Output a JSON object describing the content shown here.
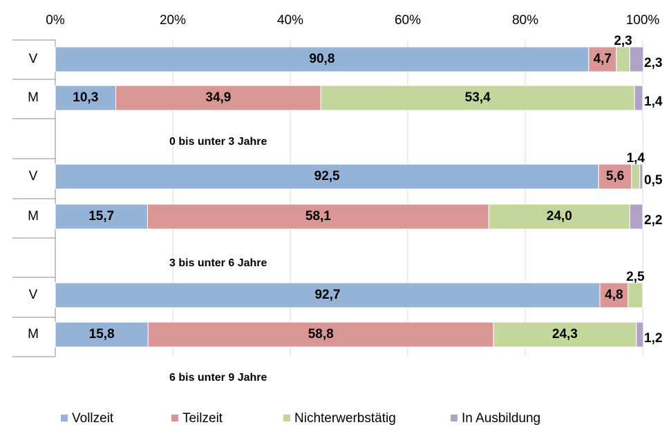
{
  "chart_data": {
    "type": "stacked-bar-horizontal",
    "categories": [
      "V",
      "M",
      "V",
      "M",
      "V",
      "M"
    ],
    "groups": [
      "0 bis unter 3 Jahre",
      "3 bis unter 6 Jahre",
      "6 bis unter 9 Jahre"
    ],
    "series": [
      {
        "name": "Vollzeit",
        "color": "#95b3d7",
        "values": [
          90.8,
          10.3,
          92.5,
          15.7,
          92.7,
          15.8
        ],
        "value_labels": [
          "90,8",
          "10,3",
          "92,5",
          "15,7",
          "92,7",
          "15,8"
        ]
      },
      {
        "name": "Teilzeit",
        "color": "#d99694",
        "values": [
          4.7,
          34.9,
          5.6,
          58.1,
          4.8,
          58.8
        ],
        "value_labels": [
          "4,7",
          "34,9",
          "5,6",
          "58,1",
          "4,8",
          "58,8"
        ]
      },
      {
        "name": "Nichterwerbstätig",
        "color": "#c3d69b",
        "values": [
          2.3,
          53.4,
          1.4,
          24.0,
          2.5,
          24.3
        ],
        "value_labels": [
          "2,3",
          "53,4",
          "1,4",
          "24,0",
          "2,5",
          "24,3"
        ]
      },
      {
        "name": "In Ausbildung",
        "color": "#b3a2c7",
        "values": [
          2.3,
          1.4,
          0.5,
          2.2,
          null,
          1.2
        ],
        "value_labels": [
          "2,3",
          "1,4",
          "0,5",
          "2,2",
          null,
          "1,2"
        ]
      }
    ],
    "xlim": [
      0,
      100
    ],
    "xticks": [
      {
        "value": 0,
        "label": "0%"
      },
      {
        "value": 20,
        "label": "20%"
      },
      {
        "value": 40,
        "label": "40%"
      },
      {
        "value": 60,
        "label": "60%"
      },
      {
        "value": 80,
        "label": "80%"
      },
      {
        "value": 100,
        "label": "100%"
      }
    ],
    "legend": "bottom"
  }
}
